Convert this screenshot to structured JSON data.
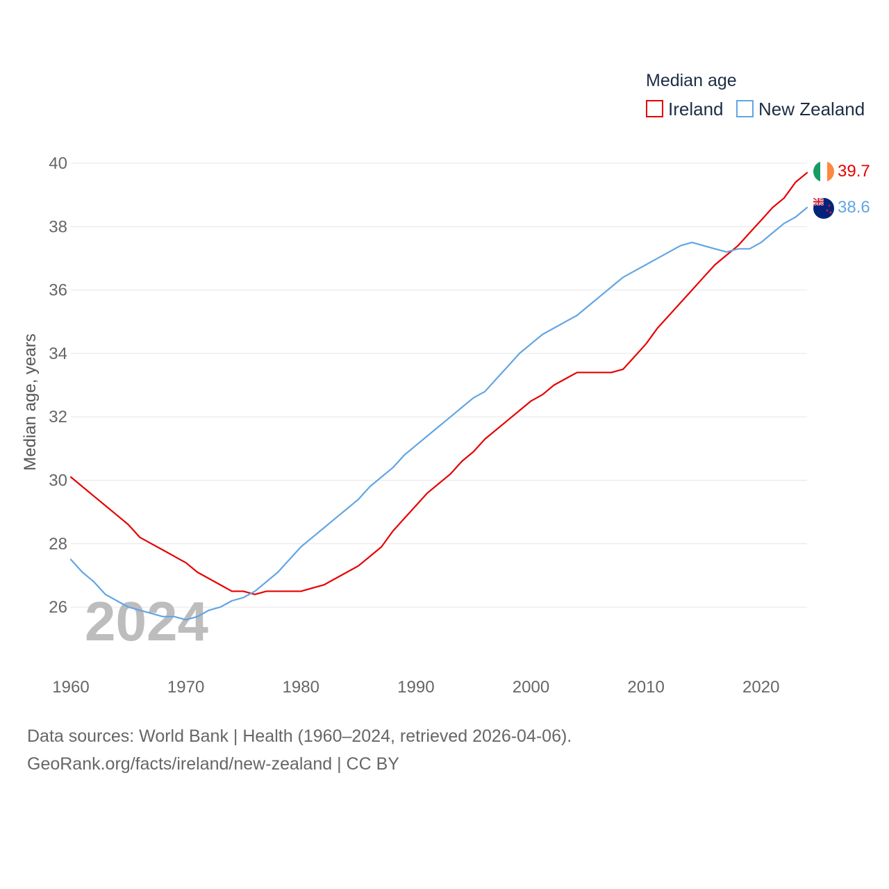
{
  "chart_data": {
    "type": "line",
    "legend_title": "Median age",
    "ylabel": "Median age, years",
    "year_label": "2024",
    "x_ticks": [
      1960,
      1970,
      1980,
      1990,
      2000,
      2010,
      2020
    ],
    "y_ticks": [
      26,
      28,
      30,
      32,
      34,
      36,
      38,
      40
    ],
    "xlim": [
      1960,
      2024
    ],
    "ylim": [
      24.6,
      40
    ],
    "x": [
      1960,
      1961,
      1962,
      1963,
      1964,
      1965,
      1966,
      1967,
      1968,
      1969,
      1970,
      1971,
      1972,
      1973,
      1974,
      1975,
      1976,
      1977,
      1978,
      1979,
      1980,
      1981,
      1982,
      1983,
      1984,
      1985,
      1986,
      1987,
      1988,
      1989,
      1990,
      1991,
      1992,
      1993,
      1994,
      1995,
      1996,
      1997,
      1998,
      1999,
      2000,
      2001,
      2002,
      2003,
      2004,
      2005,
      2006,
      2007,
      2008,
      2009,
      2010,
      2011,
      2012,
      2013,
      2014,
      2015,
      2016,
      2017,
      2018,
      2019,
      2020,
      2021,
      2022,
      2023,
      2024
    ],
    "series": [
      {
        "name": "Ireland",
        "color": "#e60000",
        "end_label": "39.7",
        "values": [
          30.1,
          29.8,
          29.5,
          29.2,
          28.9,
          28.6,
          28.2,
          28.0,
          27.8,
          27.6,
          27.4,
          27.1,
          26.9,
          26.7,
          26.5,
          26.5,
          26.4,
          26.5,
          26.5,
          26.5,
          26.5,
          26.6,
          26.7,
          26.9,
          27.1,
          27.3,
          27.6,
          27.9,
          28.4,
          28.8,
          29.2,
          29.6,
          29.9,
          30.2,
          30.6,
          30.9,
          31.3,
          31.6,
          31.9,
          32.2,
          32.5,
          32.7,
          33.0,
          33.2,
          33.4,
          33.4,
          33.4,
          33.4,
          33.5,
          33.9,
          34.3,
          34.8,
          35.2,
          35.6,
          36.0,
          36.4,
          36.8,
          37.1,
          37.4,
          37.8,
          38.2,
          38.6,
          38.9,
          39.4,
          39.7
        ]
      },
      {
        "name": "New Zealand",
        "color": "#62a5e4",
        "end_label": "38.6",
        "values": [
          27.5,
          27.1,
          26.8,
          26.4,
          26.2,
          26.0,
          25.9,
          25.8,
          25.7,
          25.7,
          25.6,
          25.7,
          25.9,
          26.0,
          26.2,
          26.3,
          26.5,
          26.8,
          27.1,
          27.5,
          27.9,
          28.2,
          28.5,
          28.8,
          29.1,
          29.4,
          29.8,
          30.1,
          30.4,
          30.8,
          31.1,
          31.4,
          31.7,
          32.0,
          32.3,
          32.6,
          32.8,
          33.2,
          33.6,
          34.0,
          34.3,
          34.6,
          34.8,
          35.0,
          35.2,
          35.5,
          35.8,
          36.1,
          36.4,
          36.6,
          36.8,
          37.0,
          37.2,
          37.4,
          37.5,
          37.4,
          37.3,
          37.2,
          37.3,
          37.3,
          37.5,
          37.8,
          38.1,
          38.3,
          38.6
        ]
      }
    ]
  },
  "footer": {
    "sources": "Data sources: World Bank | Health (1960–2024, retrieved 2026-04-06).",
    "attribution": "GeoRank.org/facts/ireland/new-zealand | CC BY"
  },
  "flags": {
    "ireland_icon": "ireland-flag-icon",
    "new_zealand_icon": "new-zealand-flag-icon",
    "ireland_colors": [
      "#169b62",
      "#ffffff",
      "#ff883e"
    ],
    "new_zealand_colors": [
      "#00247d",
      "#cc142b",
      "#ffffff"
    ]
  }
}
